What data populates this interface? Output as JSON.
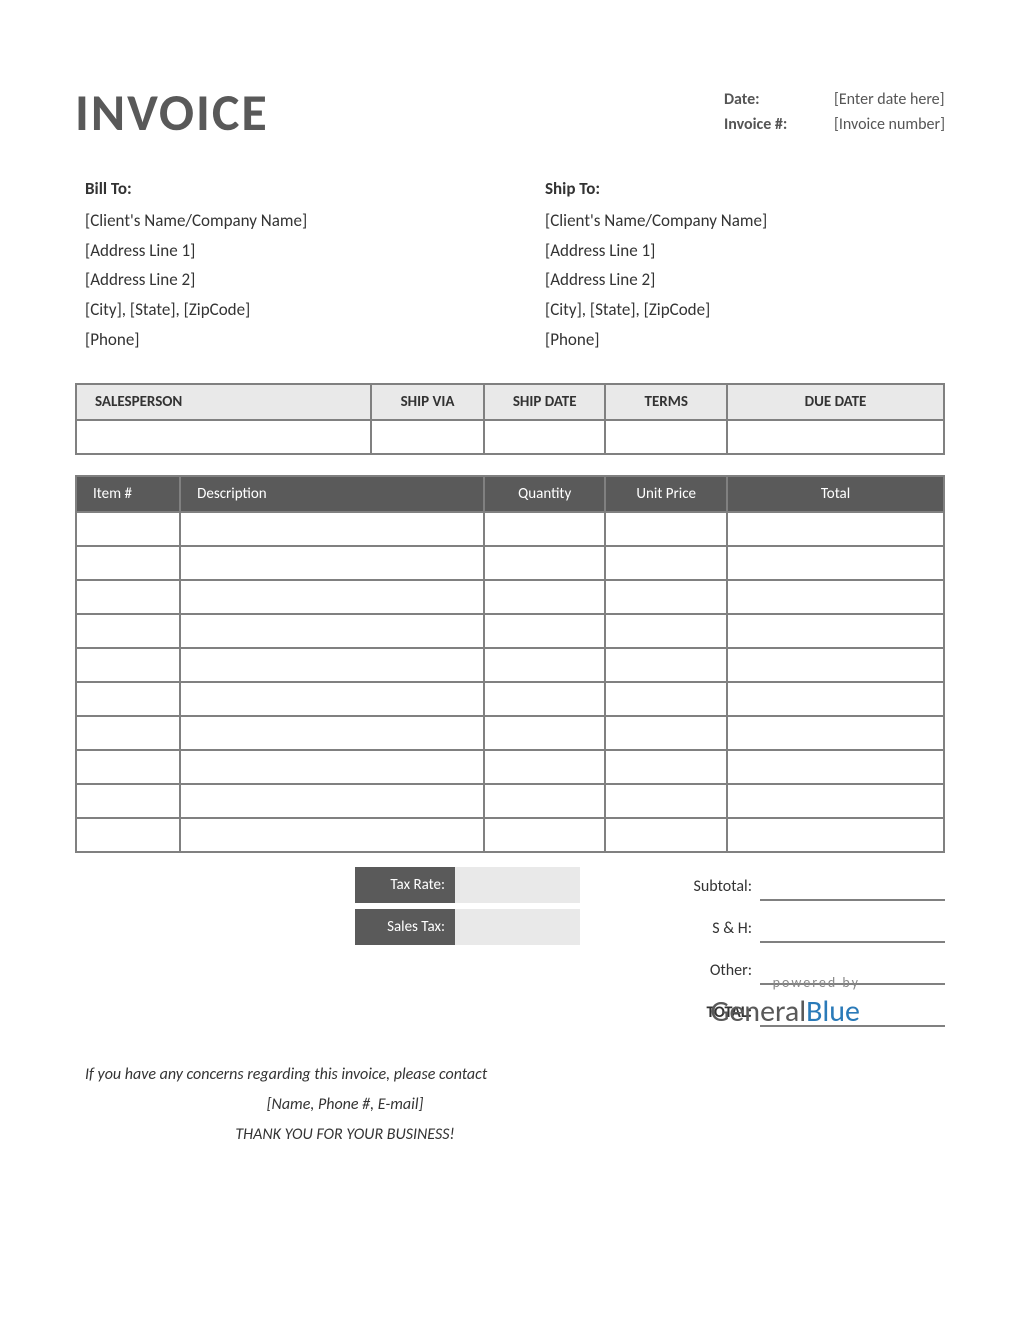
{
  "title": "INVOICE",
  "meta": {
    "date_label": "Date:",
    "date_value": "[Enter date here]",
    "invoice_num_label": "Invoice #:",
    "invoice_num_value": "[Invoice number]"
  },
  "bill_to": {
    "heading": "Bill To:",
    "name": "[Client's Name/Company Name]",
    "addr1": "[Address Line 1]",
    "addr2": "[Address Line 2]",
    "city": "[City], [State], [ZipCode]",
    "phone": "[Phone]"
  },
  "ship_to": {
    "heading": "Ship To:",
    "name": "[Client's Name/Company Name]",
    "addr1": "[Address Line 1]",
    "addr2": "[Address Line 2]",
    "city": "[City], [State], [ZipCode]",
    "phone": "[Phone]"
  },
  "info_table": {
    "headers": [
      "SALESPERSON",
      "SHIP VIA",
      "SHIP DATE",
      "TERMS",
      "DUE DATE"
    ],
    "col_widths_pct": [
      34,
      13,
      14,
      14,
      25
    ],
    "header_bg": "#e9e9e9",
    "border_color": "#808080",
    "row_values": [
      "",
      "",
      "",
      "",
      ""
    ]
  },
  "items_table": {
    "headers": [
      "Item #",
      "Description",
      "Quantity",
      "Unit Price",
      "Total"
    ],
    "col_widths_pct": [
      12,
      35,
      14,
      14,
      25
    ],
    "header_bg": "#5a5a5a",
    "header_text_color": "#ffffff",
    "border_color": "#808080",
    "num_blank_rows": 10
  },
  "tax": {
    "rate_label": "Tax Rate:",
    "rate_value": "",
    "sales_label": "Sales Tax:",
    "sales_value": "",
    "label_bg": "#5a5a5a",
    "value_bg": "#e9e9e9"
  },
  "totals": {
    "subtotal_label": "Subtotal:",
    "sh_label": "S & H:",
    "other_label": "Other:",
    "total_label": "TOTAL:",
    "line_color": "#808080"
  },
  "footer": {
    "concern": "If you have any concerns regarding this invoice, please contact",
    "contact": "[Name, Phone #, E-mail]",
    "thanks": "THANK YOU FOR YOUR BUSINESS!"
  },
  "brand": {
    "powered": "powered by",
    "name1": "General",
    "name2": "Blue"
  },
  "colors": {
    "title_color": "#595959",
    "text_color": "#333333",
    "brand_blue": "#2a7ab8",
    "background": "#ffffff"
  },
  "typography": {
    "title_fontsize_pt": 39,
    "body_fontsize_pt": 12,
    "font_family": "Calibri, Arial, sans-serif"
  }
}
